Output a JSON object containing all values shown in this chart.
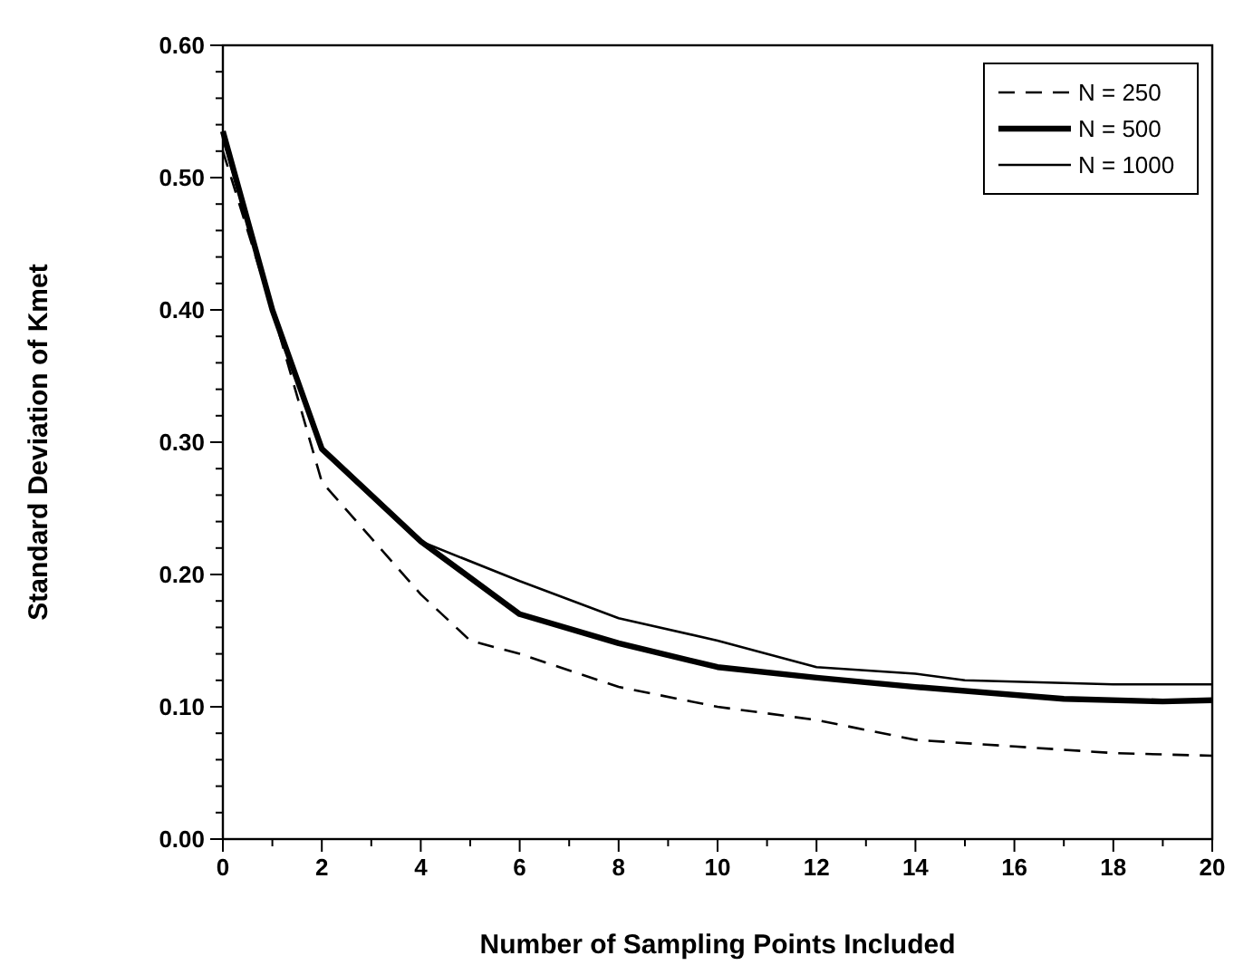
{
  "chart_data": {
    "type": "line",
    "xlabel": "Number of Sampling Points Included",
    "ylabel": "Standard Deviation of Kmet",
    "xlim": [
      0,
      20
    ],
    "ylim": [
      0,
      0.6
    ],
    "xticks": [
      0,
      {
        "value": 1,
        "label": null
      },
      2,
      {
        "value": 3,
        "label": null
      },
      4,
      {
        "value": 5,
        "label": null
      },
      6,
      {
        "value": 7,
        "label": null
      },
      8,
      {
        "value": 9,
        "label": null
      },
      10,
      {
        "value": 11,
        "label": null
      },
      12,
      {
        "value": 13,
        "label": null
      },
      14,
      {
        "value": 15,
        "label": null
      },
      16,
      {
        "value": 17,
        "label": null
      },
      18,
      {
        "value": 19,
        "label": null
      },
      20
    ],
    "yticks": [
      "0.00",
      {
        "value": 0.02,
        "label": null
      },
      {
        "value": 0.04,
        "label": null
      },
      {
        "value": 0.06,
        "label": null
      },
      {
        "value": 0.08,
        "label": null
      },
      {
        "value": 0.1,
        "label": "0.10"
      },
      {
        "value": 0.12,
        "label": null
      },
      {
        "value": 0.14,
        "label": null
      },
      {
        "value": 0.16,
        "label": null
      },
      {
        "value": 0.18,
        "label": null
      },
      {
        "value": 0.2,
        "label": "0.20"
      },
      {
        "value": 0.22,
        "label": null
      },
      {
        "value": 0.24,
        "label": null
      },
      {
        "value": 0.26,
        "label": null
      },
      {
        "value": 0.28,
        "label": null
      },
      {
        "value": 0.3,
        "label": "0.30"
      },
      {
        "value": 0.32,
        "label": null
      },
      {
        "value": 0.34,
        "label": null
      },
      {
        "value": 0.36,
        "label": null
      },
      {
        "value": 0.38,
        "label": null
      },
      {
        "value": 0.4,
        "label": "0.40"
      },
      {
        "value": 0.42,
        "label": null
      },
      {
        "value": 0.44,
        "label": null
      },
      {
        "value": 0.46,
        "label": null
      },
      {
        "value": 0.48,
        "label": null
      },
      {
        "value": 0.5,
        "label": "0.50"
      },
      {
        "value": 0.52,
        "label": null
      },
      {
        "value": 0.54,
        "label": null
      },
      {
        "value": 0.56,
        "label": null
      },
      {
        "value": 0.58,
        "label": null
      },
      {
        "value": 0.6,
        "label": "0.60"
      }
    ],
    "grid": false,
    "legend": "top right",
    "marker": "none",
    "series": [
      {
        "name": "N = 250",
        "color": "#000000",
        "line_style": "dashed",
        "x": [
          0,
          1,
          2,
          4,
          5,
          6,
          8,
          10,
          12,
          14,
          16,
          18,
          20
        ],
        "values": [
          0.52,
          0.4,
          0.27,
          0.185,
          0.15,
          0.14,
          0.115,
          0.1,
          0.09,
          0.075,
          0.07,
          0.065,
          0.063
        ]
      },
      {
        "name": "N = 500",
        "color": "#000000",
        "line_style": "solid",
        "x": [
          0,
          1,
          2,
          4,
          6,
          8,
          10,
          12,
          14,
          17,
          19,
          20
        ],
        "values": [
          0.535,
          0.4,
          0.295,
          0.225,
          0.17,
          0.148,
          0.13,
          0.122,
          0.115,
          0.106,
          0.104,
          0.105
        ]
      },
      {
        "name": "N = 1000",
        "color": "#000000",
        "line_style": "solid",
        "x": [
          0,
          1,
          2,
          4,
          6,
          8,
          10,
          12,
          14,
          15,
          18,
          20
        ],
        "values": [
          0.53,
          0.4,
          0.295,
          0.225,
          0.195,
          0.167,
          0.15,
          0.13,
          0.125,
          0.12,
          0.117,
          0.117
        ]
      }
    ]
  }
}
